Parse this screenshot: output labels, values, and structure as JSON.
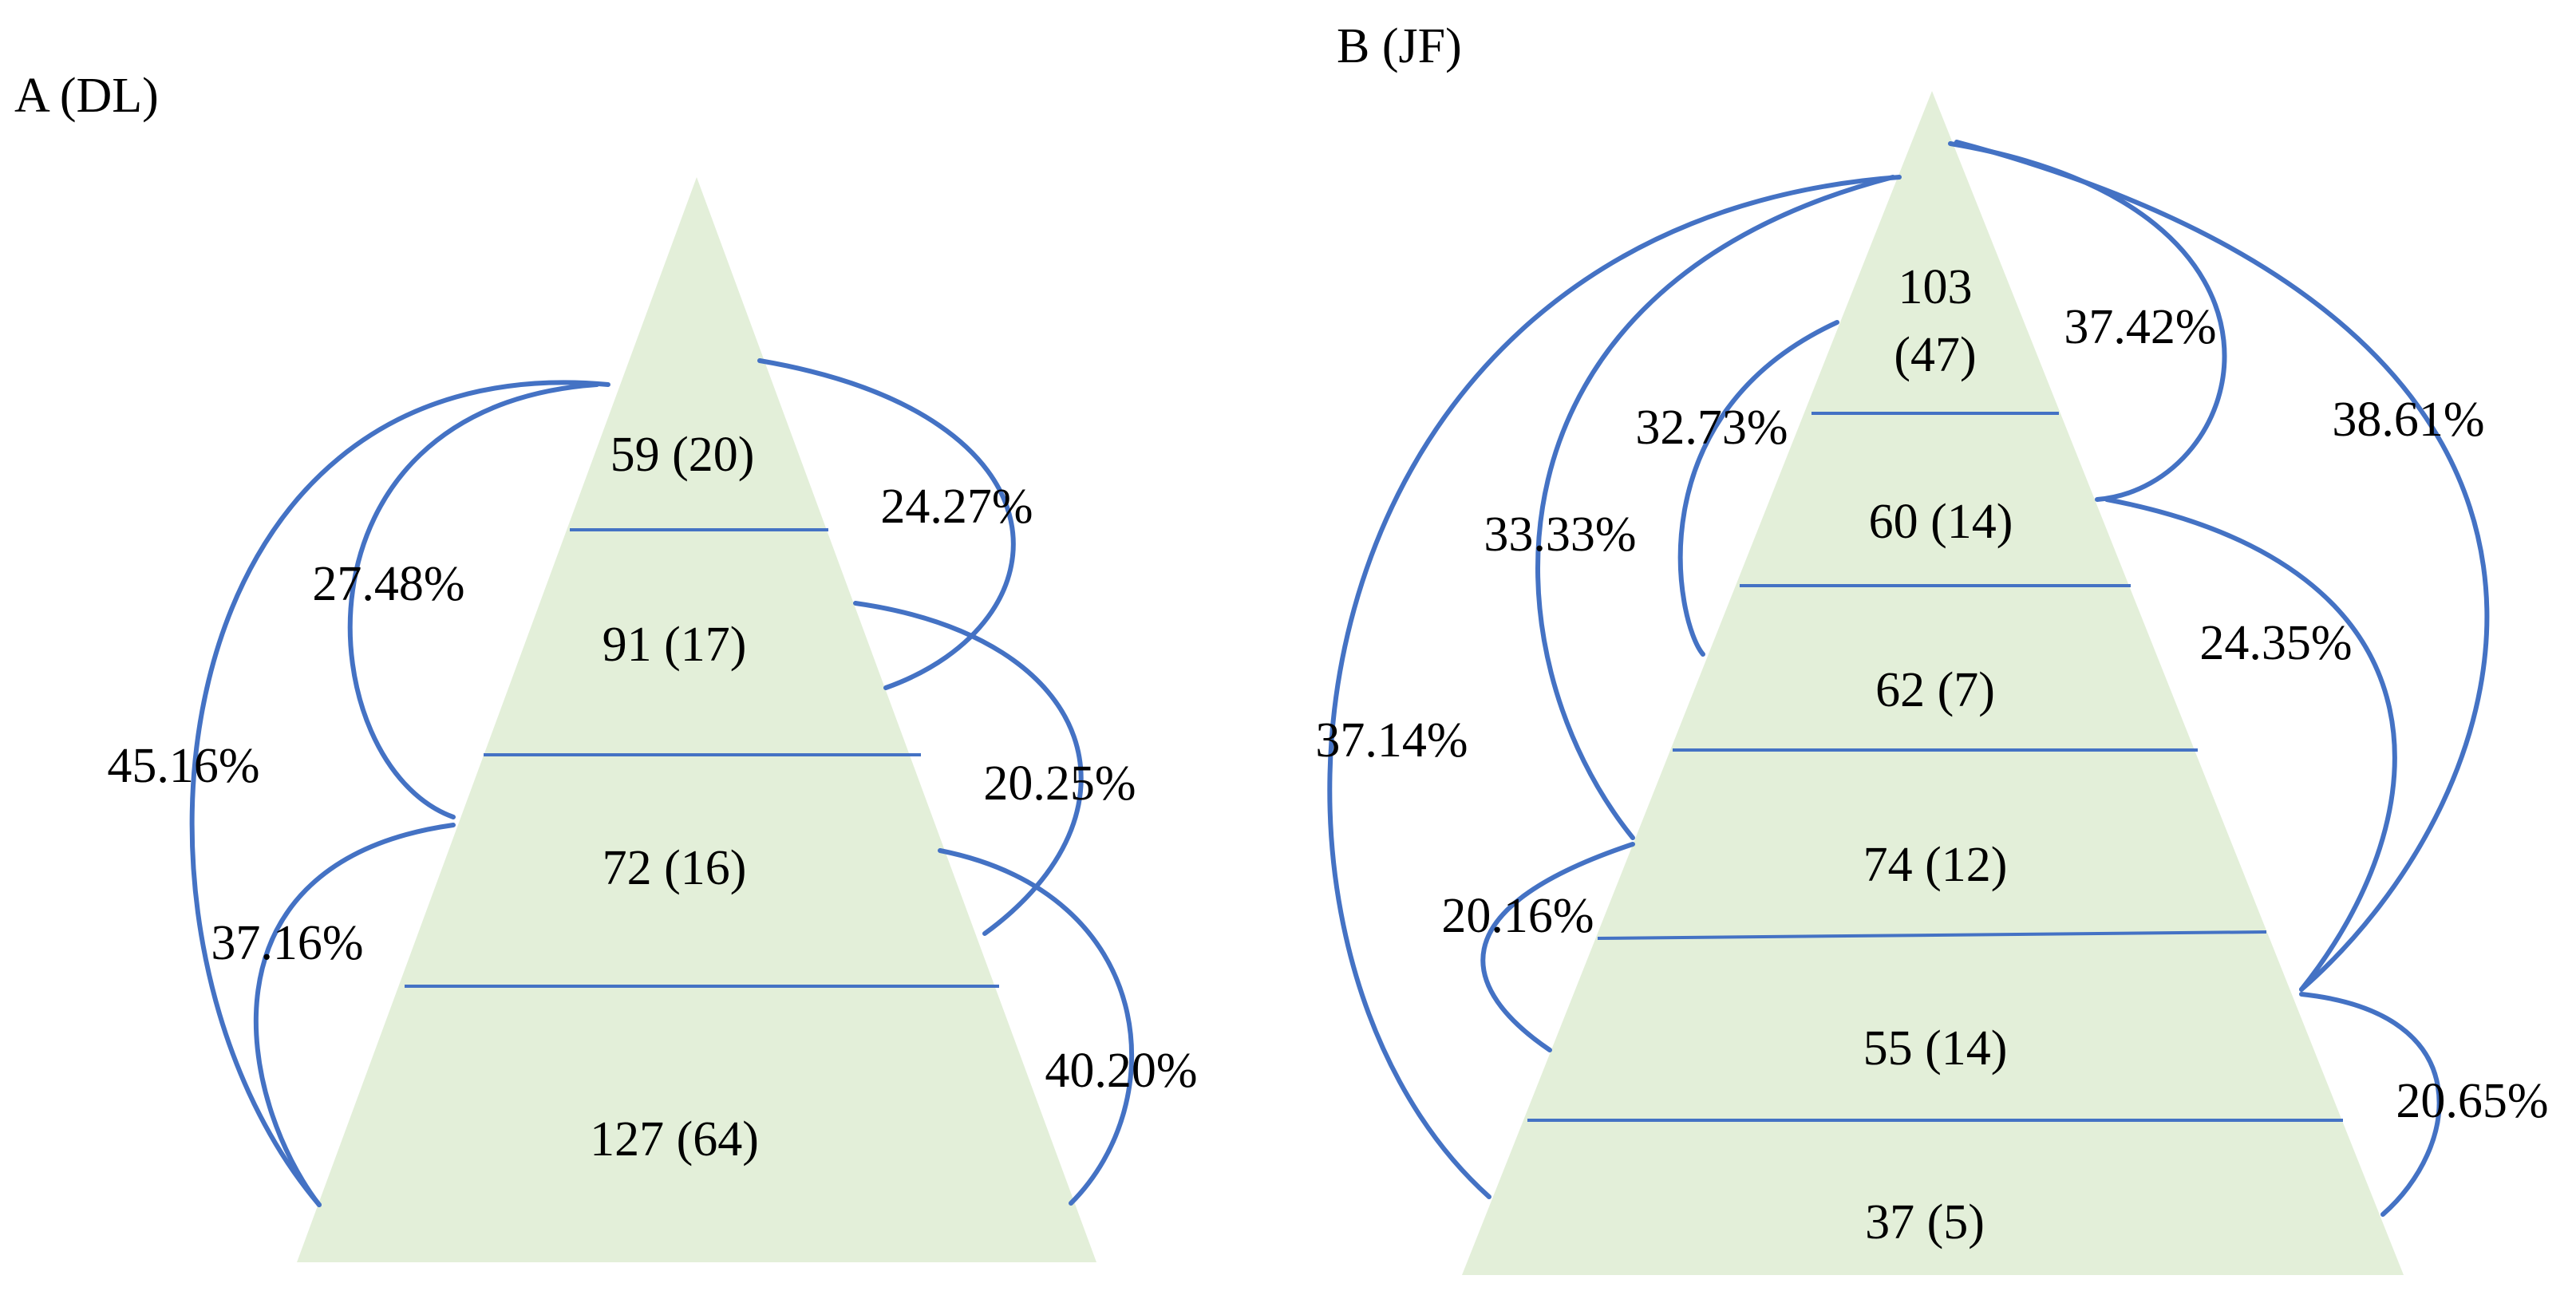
{
  "colors": {
    "pyramid_fill": "#e3efd9",
    "line": "#4472c4",
    "text": "#000000"
  },
  "panels": [
    {
      "title": "A (DL)",
      "tiers": [
        {
          "label": "59 (20)"
        },
        {
          "label": "91 (17)"
        },
        {
          "label": "72 (16)"
        },
        {
          "label": "127 (64)"
        }
      ],
      "links": [
        {
          "label": "24.27%"
        },
        {
          "label": "27.48%"
        },
        {
          "label": "45.16%"
        },
        {
          "label": "20.25%"
        },
        {
          "label": "37.16%"
        },
        {
          "label": "40.20%"
        }
      ]
    },
    {
      "title": "B (JF)",
      "tiers": [
        {
          "label": "103"
        },
        {
          "label": "(47)"
        },
        {
          "label": "60 (14)"
        },
        {
          "label": "62 (7)"
        },
        {
          "label": "74 (12)"
        },
        {
          "label": "55 (14)"
        },
        {
          "label": "37 (5)"
        }
      ],
      "links": [
        {
          "label": "37.42%"
        },
        {
          "label": "32.73%"
        },
        {
          "label": "38.61%"
        },
        {
          "label": "33.33%"
        },
        {
          "label": "24.35%"
        },
        {
          "label": "37.14%"
        },
        {
          "label": "20.16%"
        },
        {
          "label": "20.65%"
        }
      ]
    }
  ]
}
